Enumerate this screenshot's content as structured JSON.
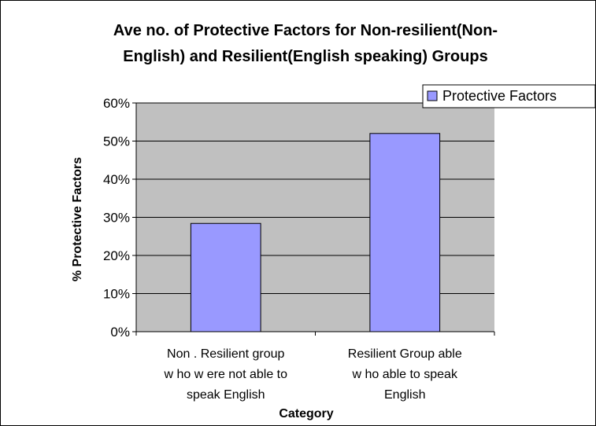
{
  "chart_data": {
    "type": "bar",
    "title_lines": [
      "Ave no. of Protective Factors for Non-resilient(Non-",
      "English) and Resilient(English speaking) Groups"
    ],
    "categories": [
      [
        "Non . Resilient group",
        "w ho w ere not able to",
        "speak English"
      ],
      [
        "Resilient Group able",
        "w ho  able to speak",
        "English"
      ]
    ],
    "series": [
      {
        "name": "Protective Factors",
        "values": [
          0.284,
          0.52
        ],
        "color": "#9999ff"
      }
    ],
    "ylim": [
      0,
      0.6
    ],
    "yticks": [
      0,
      0.1,
      0.2,
      0.3,
      0.4,
      0.5,
      0.6
    ],
    "ytick_labels": [
      "0%",
      "10%",
      "20%",
      "30%",
      "40%",
      "50%",
      "60%"
    ],
    "xlabel": "Category",
    "ylabel": "% Protective Factors",
    "legend_position": "top-right",
    "plot_background": "#c0c0c0",
    "gridlines": "horizontal"
  }
}
